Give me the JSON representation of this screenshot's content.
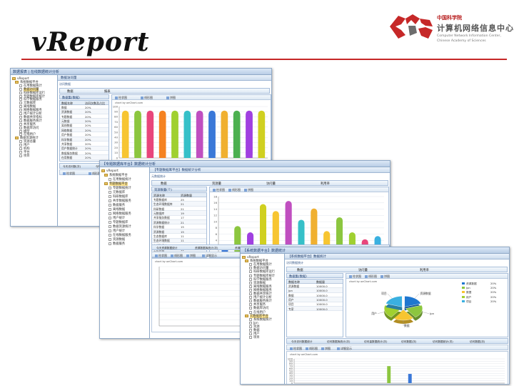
{
  "slide_title": "vReport",
  "logo": {
    "cn_line1": "中国科学院",
    "cn_line2": "计算机网络信息中心",
    "en_line1": "Computer Network Information Center,",
    "en_line2": "Chinese Academy of Sciences",
    "colors": {
      "red": "#c62828",
      "gray": "#6d6d6d"
    }
  },
  "brand_color": "#c62828",
  "windows": [
    {
      "title": "数据报表 | 在线数据统计分析",
      "nav_header": "vReport",
      "nav_items": [
        {
          "label": "vReport",
          "icon": "folder"
        },
        {
          "label": "系统数据平台",
          "icon": "folder"
        },
        {
          "label": "在用数据统计",
          "icon": "check"
        },
        {
          "label": "数据访问量",
          "icon": "check",
          "selected": true
        },
        {
          "label": "科研数据库运行",
          "icon": "check"
        },
        {
          "label": "专题数据库统计",
          "icon": "check"
        },
        {
          "label": "科学数据服务",
          "icon": "check"
        },
        {
          "label": "元数据库",
          "icon": "check"
        },
        {
          "label": "离线数据",
          "icon": "check"
        },
        {
          "label": "网络数据服务",
          "icon": "check"
        },
        {
          "label": "用户统计分析",
          "icon": "check"
        },
        {
          "label": "数据共享指标",
          "icon": "check"
        },
        {
          "label": "数据服务统计",
          "icon": "check"
        },
        {
          "label": "共享服务",
          "icon": "check"
        },
        {
          "label": "数据库访问",
          "icon": "check"
        },
        {
          "label": "模型",
          "icon": "check"
        },
        {
          "label": "在线用户",
          "icon": "check"
        },
        {
          "label": "数据资源统计",
          "icon": "folder"
        },
        {
          "label": "资源总量",
          "icon": "check"
        },
        {
          "label": "用户",
          "icon": "check"
        },
        {
          "label": "机构",
          "icon": "check"
        },
        {
          "label": "平台",
          "icon": "check"
        },
        {
          "label": "项目",
          "icon": "check"
        }
      ],
      "tab": "数据访问量",
      "crumb": "访问数据",
      "top_tabs": [
        "数据",
        "报表"
      ],
      "sub_header": "数据集(数据)",
      "columns": [
        "数据名称",
        "访问次数及占比"
      ],
      "rows": [
        [
          "数据",
          "20%"
        ],
        [
          "资源数据",
          "20%"
        ],
        [
          "专题数据",
          "20%"
        ],
        [
          "元数据",
          "20%"
        ],
        [
          "离线数据",
          "20%"
        ],
        [
          "网络数据",
          "20%"
        ],
        [
          "用户数据",
          "20%"
        ],
        [
          "科学数据",
          "20%"
        ],
        [
          "共享数据",
          "20%"
        ],
        [
          "用户数据统计",
          "20%"
        ],
        [
          "数据服务数据",
          "20%"
        ],
        [
          "在用数据",
          "20%"
        ]
      ],
      "chart_tabs": [
        "柱状图",
        "线形图",
        "饼图"
      ],
      "credit": "chart by oeChart.com",
      "bottom_tabs": [
        "今天访问数(次)",
        "今年数据访问量(次)",
        "今天访问总数(次)",
        "访问量趋势(Map(次)",
        "访问量趋势(Map(次)",
        "访问总量(次)"
      ],
      "lower_toolbar": [
        "柱状图",
        "线形图"
      ]
    },
    {
      "title": "【专题数据库平台】数据统计分析",
      "nav_header": "vReport",
      "nav_items": [
        {
          "label": "vReport",
          "icon": "folder"
        },
        {
          "label": "系统数据平台",
          "icon": "folder"
        },
        {
          "label": "在用数据统计",
          "icon": "check"
        },
        {
          "label": "专题数据平台",
          "icon": "folder",
          "selected": true
        },
        {
          "label": "专题数据统计",
          "icon": "check"
        },
        {
          "label": "元数据库",
          "icon": "check"
        },
        {
          "label": "科研数据库",
          "icon": "check"
        },
        {
          "label": "共享数据服务",
          "icon": "check"
        },
        {
          "label": "数据服务",
          "icon": "check"
        },
        {
          "label": "离线数据",
          "icon": "check"
        },
        {
          "label": "网络数据服务",
          "icon": "check"
        },
        {
          "label": "用户统计",
          "icon": "check"
        },
        {
          "label": "专题数据库",
          "icon": "check"
        },
        {
          "label": "数据资源统计",
          "icon": "check"
        },
        {
          "label": "用户统计",
          "icon": "check"
        },
        {
          "label": "在线数据服务",
          "icon": "check"
        },
        {
          "label": "资源数据",
          "icon": "check"
        },
        {
          "label": "数据服务",
          "icon": "check"
        }
      ],
      "tab": "【专题数据库平台】数据统计分析",
      "crumb": "元数据统计",
      "top_tabs": [
        "数据",
        "资源量",
        "访问量",
        "利用率"
      ],
      "sub_header": "资源数量(个)",
      "columns": [
        "资源名称",
        "资源数量"
      ],
      "rows": [
        [
          "专题数据库",
          "25"
        ],
        [
          "生态环境数据库",
          "21"
        ],
        [
          "科研数据",
          "21"
        ],
        [
          "元数据库",
          "19"
        ],
        [
          "共享服务数据",
          "17"
        ],
        [
          "资源数据统计",
          "21"
        ],
        [
          "科学数据",
          "15"
        ],
        [
          "资源数据",
          "15"
        ],
        [
          "生态数据库",
          "11"
        ],
        [
          "生态环境数据",
          "11"
        ],
        [
          "在线数据库",
          "11"
        ],
        [
          "生态数据",
          "11"
        ],
        [
          "专题数据",
          "11"
        ]
      ],
      "chart_tabs": [
        "柱状图",
        "线形图",
        "饼图"
      ],
      "bottom_tabs": [
        "今天资源数据统计",
        "资源数据库统计(次)",
        "资源数据统计(次)",
        "元数据数据统计(次)",
        "资源数据库统计",
        "资源数据统计"
      ],
      "lower_toolbar": [
        "柱状图",
        "线形图",
        "饼图",
        "详细显示"
      ],
      "credit": "chart by oeChart.com"
    },
    {
      "title": "【系统数据平台】数据统计",
      "nav_header": "vReport",
      "nav_items": [
        {
          "label": "vReport",
          "icon": "folder"
        },
        {
          "label": "系统数据平台",
          "icon": "folder"
        },
        {
          "label": "在用数据统计",
          "icon": "check"
        },
        {
          "label": "数据访问量",
          "icon": "check"
        },
        {
          "label": "科研数据库运行",
          "icon": "check"
        },
        {
          "label": "专题数据库统计",
          "icon": "check"
        },
        {
          "label": "科学数据服务",
          "icon": "check"
        },
        {
          "label": "资源数据",
          "icon": "check"
        },
        {
          "label": "离线数据服务",
          "icon": "check"
        },
        {
          "label": "网络数据服务",
          "icon": "check"
        },
        {
          "label": "数据共享统计",
          "icon": "check"
        },
        {
          "label": "用户统计分析",
          "icon": "check"
        },
        {
          "label": "数据服务统计",
          "icon": "check"
        },
        {
          "label": "共享服务",
          "icon": "check"
        },
        {
          "label": "数据库访问",
          "icon": "check"
        },
        {
          "label": "在线用户",
          "icon": "check"
        },
        {
          "label": "元数据库平台",
          "icon": "folder",
          "selected": true
        },
        {
          "label": "系统数据统计",
          "icon": "check"
        },
        {
          "label": "Jpn",
          "icon": "check"
        },
        {
          "label": "资源",
          "icon": "check"
        },
        {
          "label": "数据",
          "icon": "check"
        },
        {
          "label": "用户",
          "icon": "check"
        },
        {
          "label": "项目",
          "icon": "check"
        }
      ],
      "tab": "【系统数据平台】数据统计",
      "crumb": "访问数据统计",
      "top_tabs": [
        "数据",
        "访问量",
        "利用率"
      ],
      "sub_header": "数据集(数据)",
      "columns": [
        "数据名称",
        "数据量"
      ],
      "rows": [
        [
          "资源数据",
          "10000.0"
        ],
        [
          "Jpn",
          "10000.0"
        ],
        [
          "数据",
          "10000.0"
        ],
        [
          "用户",
          "10000.0"
        ],
        [
          "项目",
          "10000.0"
        ],
        [
          "专家",
          "10000.0"
        ]
      ],
      "chart_tabs": [
        "柱状图",
        "线形图",
        "饼图"
      ],
      "credit": "chart by oeChart.com",
      "legend": [
        {
          "label": "资源数据",
          "value": "20%",
          "color": "#1f77d0"
        },
        {
          "label": "Jpn",
          "value": "20%",
          "color": "#8cc63f"
        },
        {
          "label": "数据",
          "value": "20%",
          "color": "#f7c531"
        },
        {
          "label": "用户",
          "value": "20%",
          "color": "#a0d030"
        },
        {
          "label": "项目",
          "value": "20%",
          "color": "#3ab0e0"
        }
      ],
      "pie_labels": [
        "资源数据",
        "Jpn",
        "数据",
        "用户",
        "项目"
      ],
      "bottom_tabs": [
        "今天访问数据统计",
        "访问数据库统计(次)",
        "访问量数据统计(次)",
        "访问数据(次)",
        "访问数据统计(次)",
        "访问数据(次)"
      ],
      "lower_toolbar": [
        "柱状图",
        "线形图",
        "饼图",
        "详细显示"
      ]
    }
  ],
  "chart_data": [
    {
      "type": "bar",
      "title": "",
      "categories": [
        "数据",
        "资源数据",
        "专题数据",
        "元数据",
        "离线数据",
        "网络数据",
        "用户数据",
        "科学数据",
        "共享数据",
        "用户数据统计",
        "数据服务数据",
        "在用数据"
      ],
      "values": [
        92,
        92,
        92,
        92,
        92,
        92,
        92,
        92,
        92,
        92,
        92,
        92
      ],
      "colors": [
        "#f7c531",
        "#8cc63f",
        "#e8467c",
        "#f58220",
        "#a0d030",
        "#36c0c8",
        "#c04fc0",
        "#3a78d8",
        "#f0b030",
        "#4cb050",
        "#a040e0",
        "#d0d020"
      ],
      "ylim": [
        0,
        100
      ],
      "yticks": [
        0,
        10,
        20,
        30,
        40,
        50,
        60,
        70,
        80,
        90,
        100
      ],
      "xlabel": "",
      "ylabel": "",
      "grid": true
    },
    {
      "type": "bar",
      "title": "",
      "categories": [
        "专题数据库",
        "生态环境数据库",
        "科研数据",
        "元数据库",
        "共享服务数据",
        "资源数据统计",
        "科学数据",
        "资源数据",
        "生态数据库",
        "生态环境数据",
        "在线数据库",
        "生态数据",
        "专题数据"
      ],
      "values": [
        2.6,
        8.6,
        6.6,
        15.6,
        13.4,
        16.6,
        10.6,
        14.2,
        7.0,
        11.4,
        6.6,
        4.4,
        5.4
      ],
      "colors": [
        "#3a78d8",
        "#8cc63f",
        "#a040e0",
        "#d0d020",
        "#f7c531",
        "#c04fc0",
        "#36c0c8",
        "#f0b030",
        "#f7c531",
        "#8cc63f",
        "#a0d030",
        "#e8467c",
        "#3ab0e0"
      ],
      "ylim": [
        0,
        18
      ],
      "yticks": [
        0,
        2,
        4,
        6,
        8,
        10,
        12,
        14,
        16,
        18
      ],
      "xlabel": "",
      "ylabel": "",
      "grid": true
    },
    {
      "type": "pie",
      "title": "",
      "categories": [
        "资源数据",
        "Jpn",
        "数据",
        "用户",
        "项目"
      ],
      "values": [
        20,
        20,
        20,
        20,
        20
      ],
      "colors": [
        "#1f77d0",
        "#8cc63f",
        "#f7c531",
        "#a0d030",
        "#3ab0e0"
      ]
    },
    {
      "type": "bar",
      "title": "",
      "categories": [
        "1",
        "2"
      ],
      "values": [
        70,
        38
      ],
      "colors": [
        "#8cc63f",
        "#3a78d8"
      ],
      "ylim": [
        0,
        100
      ],
      "yticks": [
        0,
        10,
        20,
        30,
        40,
        50,
        60,
        70,
        80,
        90,
        100
      ],
      "xlabel": "",
      "ylabel": "",
      "grid": true
    }
  ]
}
